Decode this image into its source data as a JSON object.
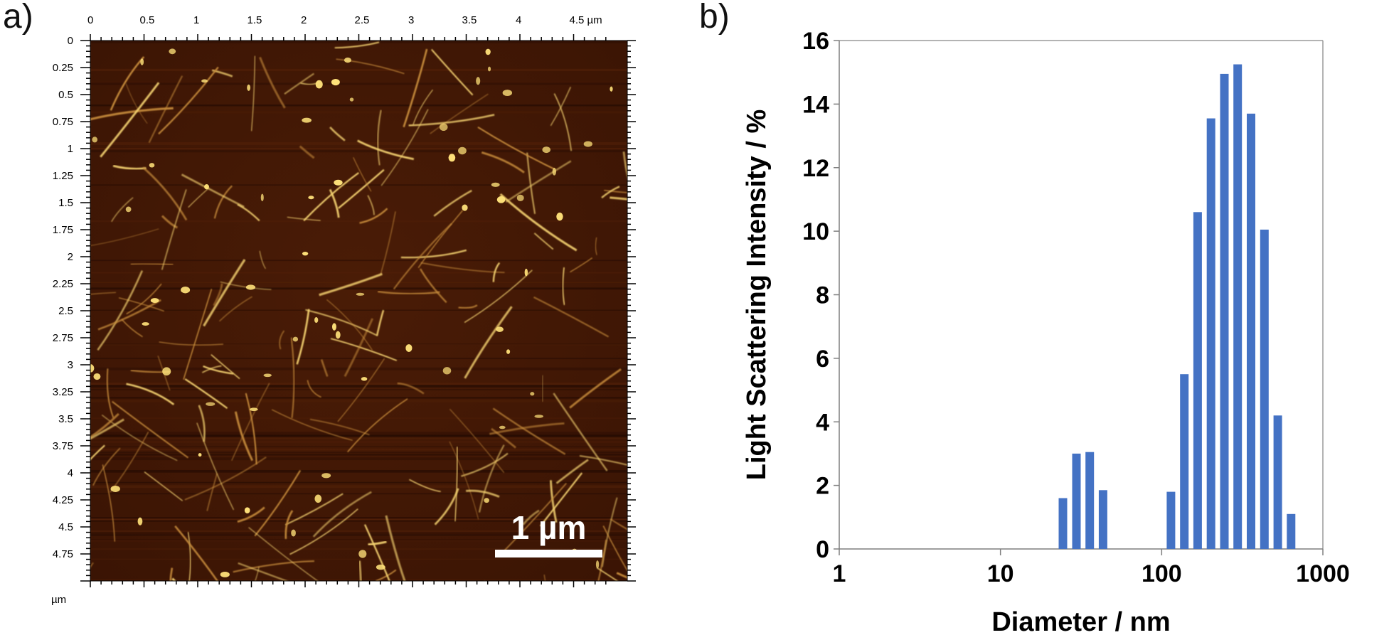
{
  "panels": {
    "a_label": "a)",
    "b_label": "b)"
  },
  "chart_data": [
    {
      "type": "afm_image",
      "x_tick_labels": [
        "0",
        "0.5",
        "1",
        "1.5",
        "2",
        "2.5",
        "3",
        "3.5",
        "4",
        "4.5 µm"
      ],
      "y_tick_labels": [
        "0",
        "0.25",
        "0.5",
        "0.75",
        "1",
        "1.25",
        "1.5",
        "1.75",
        "2",
        "2.25",
        "2.5",
        "2.75",
        "3",
        "3.25",
        "3.5",
        "3.75",
        "4",
        "4.25",
        "4.5",
        "4.75"
      ],
      "y_unit_label": "µm",
      "xlim": [
        0,
        5
      ],
      "ylim": [
        0,
        5
      ],
      "scale_bar": {
        "label": "1 µm",
        "length_um": 1
      },
      "colors": {
        "background": "#3a1404",
        "features": "#f3d070",
        "scale_bar": "#ffffff"
      }
    },
    {
      "type": "bar",
      "xlabel": "Diameter / nm",
      "ylabel": "Light Scattering Intensity / %",
      "xscale": "log",
      "xlim": [
        1,
        1000
      ],
      "ylim": [
        0,
        16
      ],
      "x_tick_labels": [
        "1",
        "10",
        "100",
        "1000"
      ],
      "y_tick_labels": [
        "0",
        "2",
        "4",
        "6",
        "8",
        "10",
        "12",
        "14",
        "16"
      ],
      "x": [
        24.4,
        29.6,
        35.8,
        43.3,
        114.2,
        138.2,
        167.2,
        202.3,
        244.8,
        296.2,
        358.5,
        433.8,
        524.9,
        635.1
      ],
      "values": [
        1.6,
        3.0,
        3.05,
        1.85,
        1.8,
        5.5,
        10.6,
        13.55,
        14.95,
        15.25,
        13.7,
        10.05,
        4.2,
        1.1
      ],
      "bar_color": "#4472c4",
      "grid": false
    }
  ]
}
